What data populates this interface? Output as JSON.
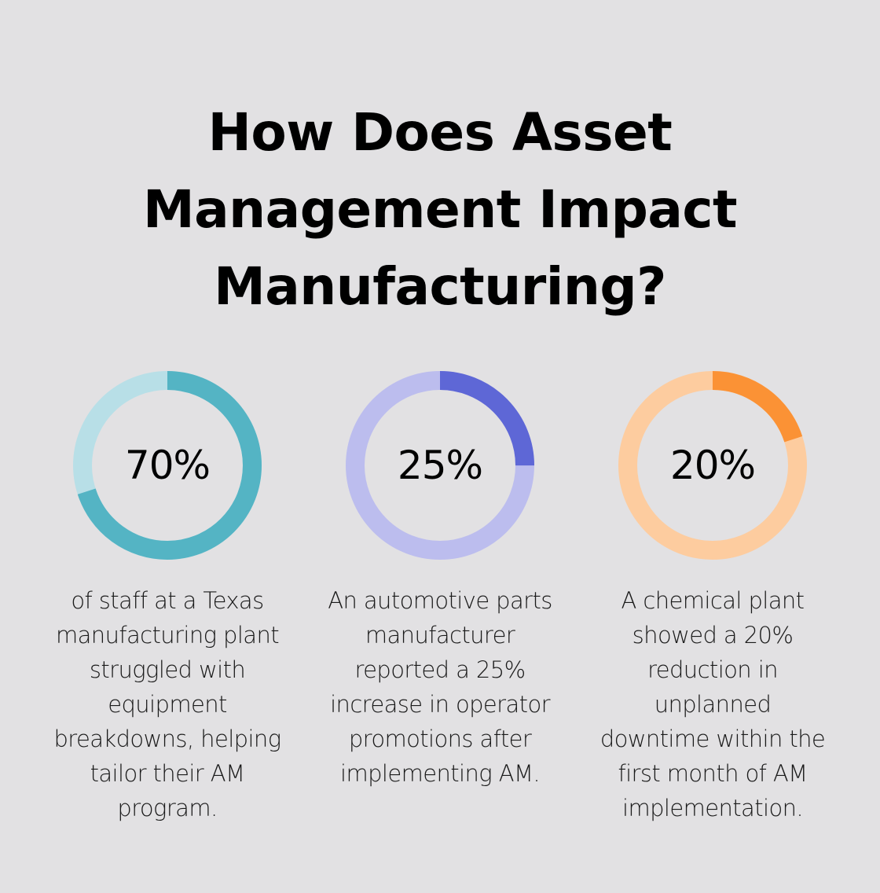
{
  "title_lines": [
    "How Does Asset",
    "Management Impact",
    "Manufacturing?"
  ],
  "chart_data": [
    {
      "type": "pie",
      "variant": "donut",
      "value": 70,
      "label": "70%",
      "description": [
        "of staff at a Texas",
        "manufacturing plant",
        "struggled with",
        "equipment",
        "breakdowns, helping",
        "tailor their AM",
        "program."
      ],
      "colors": {
        "fill": "#54b4c4",
        "track": "#b8dfe7"
      }
    },
    {
      "type": "pie",
      "variant": "donut",
      "value": 25,
      "label": "25%",
      "description": [
        "An automotive parts",
        "manufacturer",
        "reported a 25%",
        "increase in operator",
        "promotions after",
        "implementing AM."
      ],
      "colors": {
        "fill": "#5e67d6",
        "track": "#bcbdee"
      }
    },
    {
      "type": "pie",
      "variant": "donut",
      "value": 20,
      "label": "20%",
      "description": [
        "A chemical plant",
        "showed a 20%",
        "reduction in",
        "unplanned",
        "downtime within the",
        "first month of AM",
        "implementation."
      ],
      "colors": {
        "fill": "#fb9235",
        "track": "#fdcc9f"
      }
    }
  ]
}
